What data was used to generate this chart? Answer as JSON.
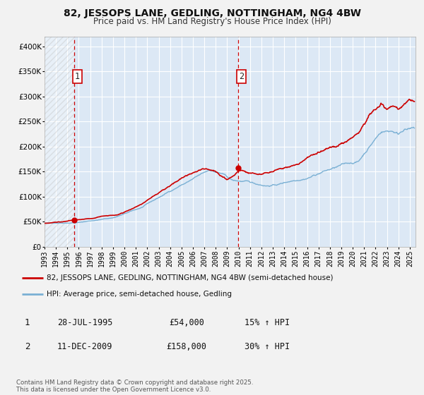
{
  "title": "82, JESSOPS LANE, GEDLING, NOTTINGHAM, NG4 4BW",
  "subtitle": "Price paid vs. HM Land Registry's House Price Index (HPI)",
  "background_color": "#f2f2f2",
  "plot_bg_color": "#dce8f5",
  "grid_color": "#ffffff",
  "red_line_color": "#cc0000",
  "blue_line_color": "#7ab0d4",
  "marker_color": "#cc0000",
  "vline_color": "#cc0000",
  "ylim": [
    0,
    420000
  ],
  "yticks": [
    0,
    50000,
    100000,
    150000,
    200000,
    250000,
    300000,
    350000,
    400000
  ],
  "ytick_labels": [
    "£0",
    "£50K",
    "£100K",
    "£150K",
    "£200K",
    "£250K",
    "£300K",
    "£350K",
    "£400K"
  ],
  "sale1_date": 1995.57,
  "sale1_price": 54000,
  "sale1_label": "1",
  "sale2_date": 2009.95,
  "sale2_price": 158000,
  "sale2_label": "2",
  "legend1": "82, JESSOPS LANE, GEDLING, NOTTINGHAM, NG4 4BW (semi-detached house)",
  "legend2": "HPI: Average price, semi-detached house, Gedling",
  "table_row1": [
    "1",
    "28-JUL-1995",
    "£54,000",
    "15% ↑ HPI"
  ],
  "table_row2": [
    "2",
    "11-DEC-2009",
    "£158,000",
    "30% ↑ HPI"
  ],
  "footer": "Contains HM Land Registry data © Crown copyright and database right 2025.\nThis data is licensed under the Open Government Licence v3.0.",
  "xmin": 1993.0,
  "xmax": 2025.5
}
